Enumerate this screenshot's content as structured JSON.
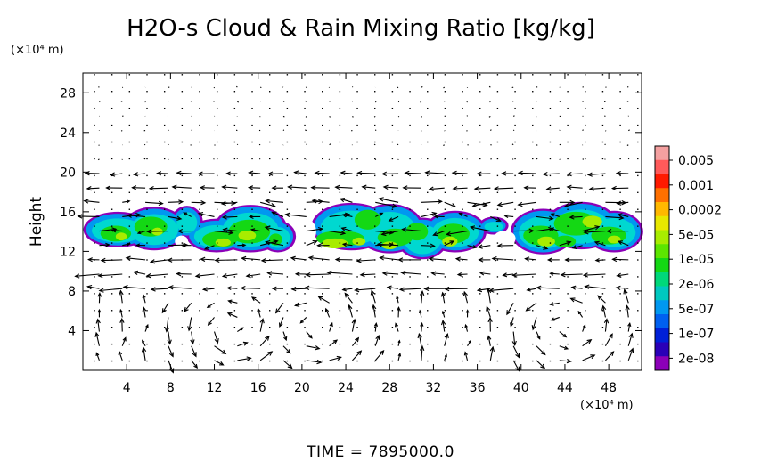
{
  "chart_data": {
    "type": "heatmap",
    "title": "H2O-s Cloud & Rain Mixing Ratio [kg/kg]",
    "ylabel": "Height",
    "x_unit": "(×10⁴ m)",
    "y_unit": "(×10⁴ m)",
    "xlim": [
      0,
      51
    ],
    "ylim": [
      0,
      30
    ],
    "x_ticks": [
      4,
      8,
      12,
      16,
      20,
      24,
      28,
      32,
      36,
      40,
      44,
      48
    ],
    "y_ticks": [
      4,
      8,
      12,
      16,
      20,
      24,
      28
    ],
    "footer": "TIME = 7895000.0",
    "colorbar": {
      "labels": [
        "0.005",
        "0.001",
        "0.0002",
        "5e-05",
        "1e-05",
        "2e-06",
        "5e-07",
        "1e-07",
        "2e-08"
      ],
      "colors": [
        "#f4a0a0",
        "#ff5a5a",
        "#ff1a00",
        "#ff7000",
        "#ffb800",
        "#e8e800",
        "#a8ec00",
        "#5ce600",
        "#14d814",
        "#00d87a",
        "#00c8c0",
        "#0098f0",
        "#0060f0",
        "#0020d8",
        "#2a00b8",
        "#8c00b8"
      ]
    },
    "cloud_layer_height_range": [
      12,
      17
    ],
    "wind_vectors": "shown"
  }
}
